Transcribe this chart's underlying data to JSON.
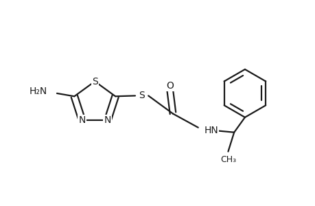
{
  "background_color": "#ffffff",
  "line_color": "#1a1a1a",
  "line_width": 1.6,
  "font_size": 10,
  "figsize": [
    4.6,
    3.0
  ],
  "dpi": 100,
  "xlim": [
    0.0,
    5.2
  ],
  "ylim": [
    -1.3,
    1.5
  ]
}
